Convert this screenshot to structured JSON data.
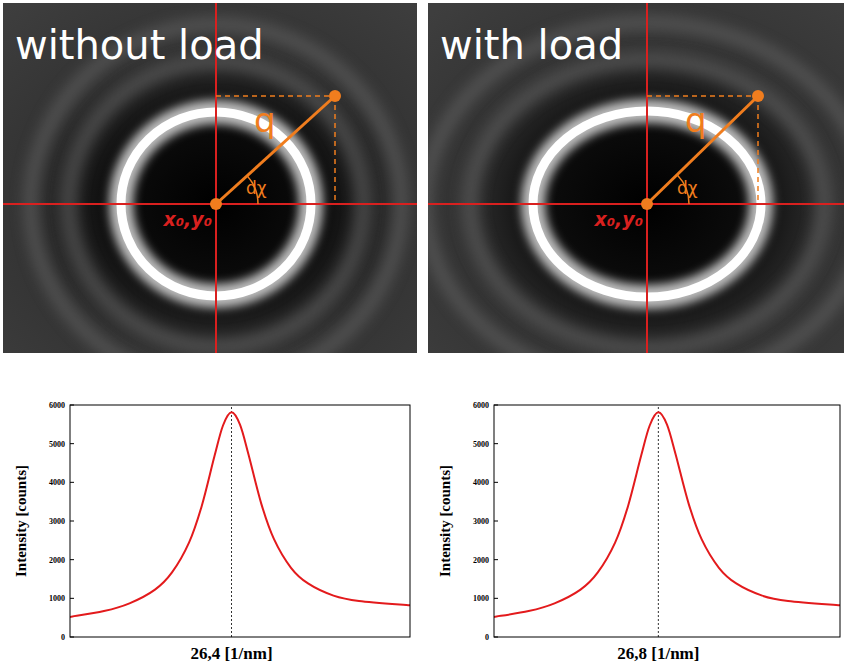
{
  "images": [
    {
      "title": "without load",
      "q_label": "q",
      "angle_label": "dχ",
      "center_label": "x₀,y₀"
    },
    {
      "title": "with load",
      "q_label": "q",
      "angle_label": "dχ",
      "center_label": "x₀,y₀"
    }
  ],
  "chart_data": [
    {
      "type": "line",
      "y_label": "Intensity [counts]",
      "x": [
        24.5,
        24.9,
        25.2,
        25.5,
        25.7,
        25.9,
        26.05,
        26.2,
        26.3,
        26.4,
        26.5,
        26.6,
        26.75,
        26.9,
        27.1,
        27.3,
        27.6,
        27.9,
        28.5
      ],
      "series": [
        {
          "color": "#e31a1c",
          "values": [
            520,
            670,
            870,
            1225,
            1670,
            2440,
            3390,
            4680,
            5470,
            5810,
            5490,
            4720,
            3450,
            2530,
            1790,
            1385,
            1070,
            930,
            820
          ]
        }
      ],
      "xlim": [
        24.5,
        28.5
      ],
      "ylim": [
        0,
        6000
      ],
      "xticks": [
        {
          "value": 26.4,
          "label": "26,4 [1/nm]"
        }
      ],
      "yticks": [
        0,
        1000,
        2000,
        3000,
        4000,
        5000,
        6000
      ]
    },
    {
      "type": "line",
      "y_label": "Intensity [counts]",
      "x": [
        24.9,
        25.3,
        25.6,
        25.9,
        26.1,
        26.3,
        26.45,
        26.6,
        26.7,
        26.8,
        26.9,
        27.0,
        27.15,
        27.3,
        27.5,
        27.7,
        28.0,
        28.3,
        28.9
      ],
      "series": [
        {
          "color": "#e31a1c",
          "values": [
            520,
            670,
            870,
            1225,
            1670,
            2440,
            3390,
            4680,
            5470,
            5810,
            5490,
            4720,
            3450,
            2530,
            1790,
            1385,
            1070,
            930,
            820
          ]
        }
      ],
      "xlim": [
        24.9,
        28.9
      ],
      "ylim": [
        0,
        6000
      ],
      "xticks": [
        {
          "value": 26.8,
          "label": "26,8 [1/nm]"
        }
      ],
      "yticks": [
        0,
        1000,
        2000,
        3000,
        4000,
        5000,
        6000
      ]
    }
  ]
}
